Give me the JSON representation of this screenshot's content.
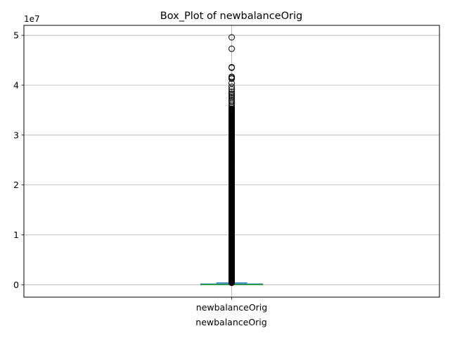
{
  "chart_data": {
    "type": "box",
    "title": "Box_Plot of newbalanceOrig",
    "xlabel": "newbalanceOrig",
    "ylabel": "",
    "categories": [
      "newbalanceOrig"
    ],
    "y_scale_label": "1e7",
    "ylim": [
      -2500000,
      52000000
    ],
    "y_ticks": [
      0,
      10000000,
      20000000,
      30000000,
      40000000,
      50000000
    ],
    "y_tick_labels": [
      "0",
      "1",
      "2",
      "3",
      "4",
      "5"
    ],
    "grid": true,
    "box": {
      "min": 0,
      "q1": 0,
      "median": 0,
      "q3": 150000,
      "whisker_high": 360000,
      "dense_outlier_range": [
        360000,
        35300000
      ],
      "outliers": [
        35600000,
        35900000,
        36300000,
        36700000,
        37000000,
        37400000,
        37700000,
        38000000,
        38300000,
        38700000,
        39200000,
        39700000,
        40400000,
        41300000,
        41500000,
        41700000,
        43500000,
        43600000,
        47300000,
        49600000
      ]
    },
    "colors": {
      "box": "#1f77b4",
      "median": "#2ca02c",
      "grid": "#b0b0b0",
      "outlier_edge": "#000000"
    }
  }
}
